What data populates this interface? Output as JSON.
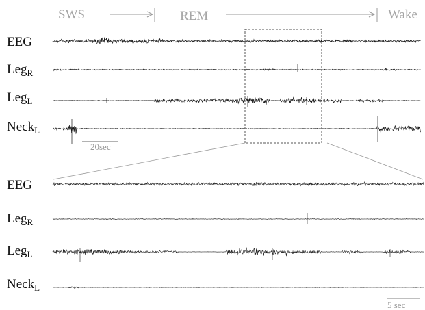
{
  "stages": {
    "sws": "SWS",
    "rem": "REM",
    "wake": "Wake"
  },
  "top_panel": {
    "channels": [
      {
        "name": "EEG",
        "sub": ""
      },
      {
        "name": "Leg",
        "sub": "R"
      },
      {
        "name": "Leg",
        "sub": "L"
      },
      {
        "name": "Neck",
        "sub": "L"
      }
    ],
    "scale_bar": "20sec"
  },
  "bottom_panel": {
    "channels": [
      {
        "name": "EEG",
        "sub": ""
      },
      {
        "name": "Leg",
        "sub": "R"
      },
      {
        "name": "Leg",
        "sub": "L"
      },
      {
        "name": "Neck",
        "sub": "L"
      }
    ],
    "scale_bar": "5 sec"
  },
  "colors": {
    "trace": "#1a1a1a",
    "stage_text": "#a6a6a6",
    "guide": "#999999"
  }
}
